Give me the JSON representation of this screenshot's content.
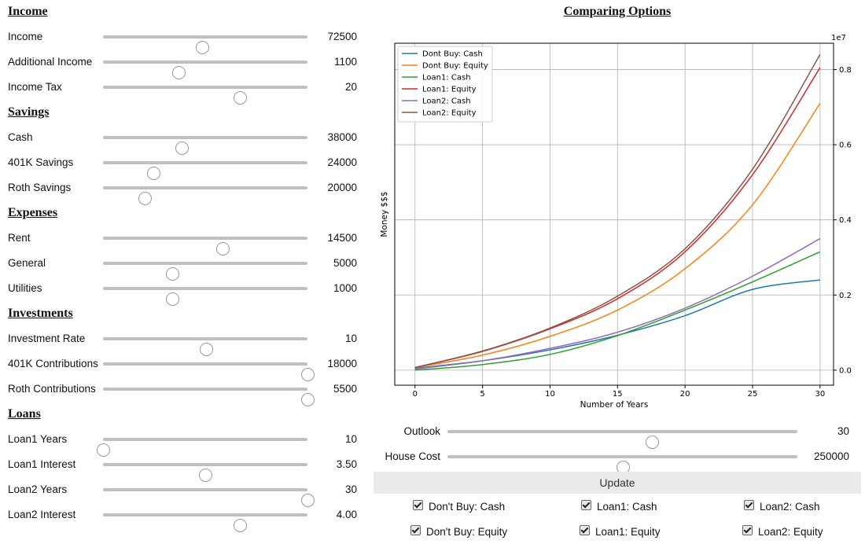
{
  "sections": {
    "income": "Income",
    "savings": "Savings",
    "expenses": "Expenses",
    "investments": "Investments",
    "loans": "Loans"
  },
  "sliders": {
    "income": {
      "label": "Income",
      "value": "72500",
      "fraction": 0.485
    },
    "additional_income": {
      "label": "Additional Income",
      "value": "1100",
      "fraction": 0.37
    },
    "income_tax": {
      "label": "Income Tax",
      "value": "20",
      "fraction": 0.67
    },
    "cash": {
      "label": "Cash",
      "value": "38000",
      "fraction": 0.385
    },
    "savings_401k": {
      "label": "401K Savings",
      "value": "24000",
      "fraction": 0.245
    },
    "roth_savings": {
      "label": "Roth Savings",
      "value": "20000",
      "fraction": 0.205
    },
    "rent": {
      "label": "Rent",
      "value": "14500",
      "fraction": 0.585
    },
    "general": {
      "label": "General",
      "value": "5000",
      "fraction": 0.34
    },
    "utilities": {
      "label": "Utilities",
      "value": "1000",
      "fraction": 0.34
    },
    "investment_rate": {
      "label": "Investment Rate",
      "value": "10",
      "fraction": 0.505
    },
    "contrib_401k": {
      "label": "401K Contributions",
      "value": "18000",
      "fraction": 1.0
    },
    "roth_contrib": {
      "label": "Roth Contributions",
      "value": "5500",
      "fraction": 1.0
    },
    "loan1_years": {
      "label": "Loan1 Years",
      "value": "10",
      "fraction": 0.0
    },
    "loan1_interest": {
      "label": "Loan1 Interest",
      "value": "3.50",
      "fraction": 0.5
    },
    "loan2_years": {
      "label": "Loan2 Years",
      "value": "30",
      "fraction": 1.0
    },
    "loan2_interest": {
      "label": "Loan2 Interest",
      "value": "4.00",
      "fraction": 0.67
    }
  },
  "chart_title": "Comparing Options",
  "controls": {
    "outlook": {
      "label": "Outlook",
      "value": "30",
      "fraction": 0.585
    },
    "house_cost": {
      "label": "House Cost",
      "value": "250000",
      "fraction": 0.5
    },
    "update_label": "Update"
  },
  "checkboxes": {
    "dont_buy_cash": "Don't Buy: Cash",
    "loan1_cash": "Loan1: Cash",
    "loan2_cash": "Loan2: Cash",
    "dont_buy_equity": "Don't Buy: Equity",
    "loan1_equity": "Loan1: Equity",
    "loan2_equity": "Loan2: Equity"
  },
  "chart_data": {
    "type": "line",
    "xlabel": "Number of Years",
    "ylabel": "Money $$$",
    "y_multiplier": "1e7",
    "xlim": [
      -1.5,
      31
    ],
    "ylim": [
      -0.04,
      0.87
    ],
    "x_ticks": [
      0,
      5,
      10,
      15,
      20,
      25,
      30
    ],
    "y_ticks": [
      "0.0",
      "0.2",
      "0.4",
      "0.6",
      "0.8"
    ],
    "y_axis_side": "right",
    "grid": true,
    "legend_position": "top-left",
    "x": [
      0,
      5,
      10,
      15,
      20,
      25,
      30
    ],
    "series": [
      {
        "name": "Dont Buy: Cash",
        "color": "#1f77b4",
        "values": [
          0.005,
          0.025,
          0.054,
          0.093,
          0.145,
          0.215,
          0.24
        ]
      },
      {
        "name": "Dont Buy: Equity",
        "color": "#ff7f0e",
        "values": [
          0.007,
          0.04,
          0.09,
          0.16,
          0.27,
          0.44,
          0.71
        ]
      },
      {
        "name": "Loan1: Cash",
        "color": "#2ca02c",
        "values": [
          0.0,
          0.015,
          0.042,
          0.092,
          0.16,
          0.235,
          0.315
        ]
      },
      {
        "name": "Loan1: Equity",
        "color": "#d62728",
        "values": [
          0.007,
          0.05,
          0.11,
          0.19,
          0.315,
          0.52,
          0.805
        ]
      },
      {
        "name": "Loan2: Cash",
        "color": "#9467bd",
        "values": [
          0.003,
          0.025,
          0.058,
          0.101,
          0.165,
          0.25,
          0.35
        ]
      },
      {
        "name": "Loan2: Equity",
        "color": "#8c564b",
        "values": [
          0.007,
          0.051,
          0.112,
          0.197,
          0.323,
          0.535,
          0.84
        ]
      }
    ]
  }
}
